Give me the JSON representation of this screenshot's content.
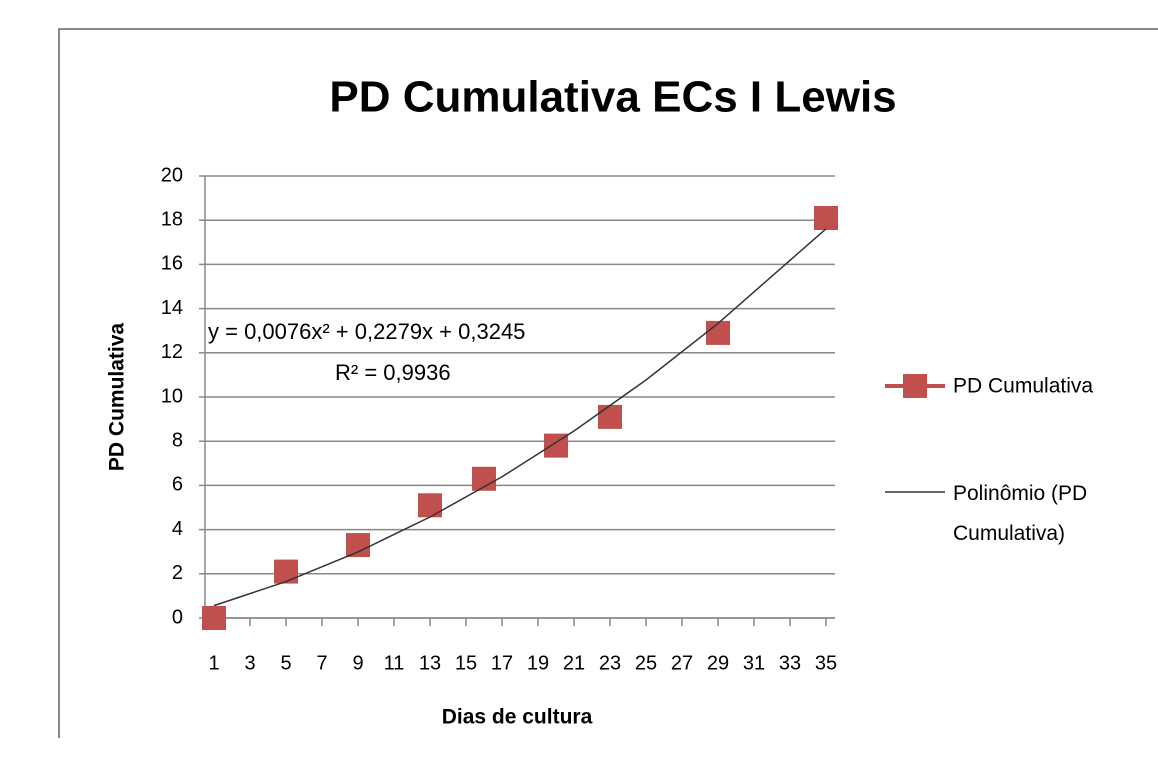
{
  "chart_data": {
    "type": "line",
    "title": "PD Cumulativa ECs I Lewis",
    "xlabel": "Dias de cultura",
    "ylabel": "PD Cumulativa",
    "xlim": [
      0.5,
      35.5
    ],
    "xticks": [
      1,
      3,
      5,
      7,
      9,
      11,
      13,
      15,
      17,
      19,
      21,
      23,
      25,
      27,
      29,
      31,
      33,
      35
    ],
    "ylim": [
      0,
      20
    ],
    "yticks": [
      0,
      2,
      4,
      6,
      8,
      10,
      12,
      14,
      16,
      18,
      20
    ],
    "grid": true,
    "legend": "right",
    "series": [
      {
        "name": "PD Cumulativa",
        "color": "#c0504d",
        "marker": "square",
        "x": [
          1,
          5,
          9,
          13,
          16,
          20,
          23,
          29,
          35
        ],
        "values": [
          0,
          2.1,
          3.3,
          5.1,
          6.3,
          7.8,
          9.1,
          12.9,
          18.1
        ]
      },
      {
        "name": "Polinômio (PD Cumulativa)",
        "color": "#333333",
        "marker": "none",
        "x": [
          1,
          5,
          9,
          13,
          17,
          21,
          25,
          29,
          35
        ],
        "values": [
          0.56,
          1.65,
          2.99,
          4.57,
          6.39,
          8.46,
          10.77,
          13.33,
          17.61
        ]
      }
    ],
    "annotations": [
      "y = 0,0076x² + 0,2279x + 0,3245",
      "R² = 0,9936"
    ]
  }
}
